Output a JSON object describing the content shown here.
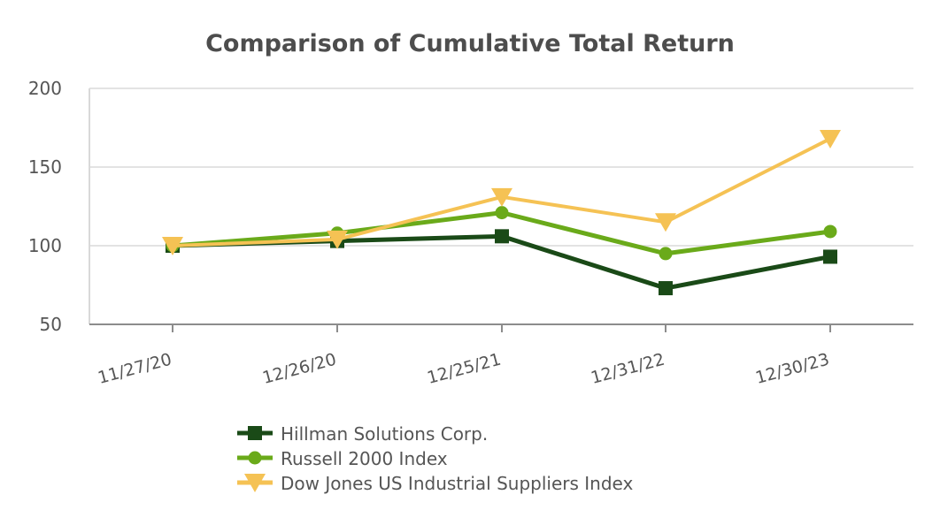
{
  "chart_data": {
    "type": "line",
    "title": "Comparison of Cumulative Total Return",
    "xlabel": "",
    "ylabel": "",
    "categories": [
      "11/27/20",
      "12/26/20",
      "12/25/21",
      "12/31/22",
      "12/30/23"
    ],
    "ylim": [
      50,
      200
    ],
    "yticks": [
      "50",
      "100",
      "150",
      "200"
    ],
    "grid": true,
    "legend_position": "bottom",
    "series": [
      {
        "name": "Hillman Solutions Corp.",
        "color": "#1a4a17",
        "marker": "square",
        "values": [
          100,
          103,
          106,
          73,
          93
        ]
      },
      {
        "name": "Russell 2000 Index",
        "color": "#6aaa1a",
        "marker": "circle",
        "values": [
          100,
          108,
          121,
          95,
          109
        ]
      },
      {
        "name": "Dow Jones US Industrial Suppliers Index",
        "color": "#f5c254",
        "marker": "triangle-down",
        "values": [
          100,
          104,
          131,
          115,
          168
        ]
      }
    ]
  }
}
